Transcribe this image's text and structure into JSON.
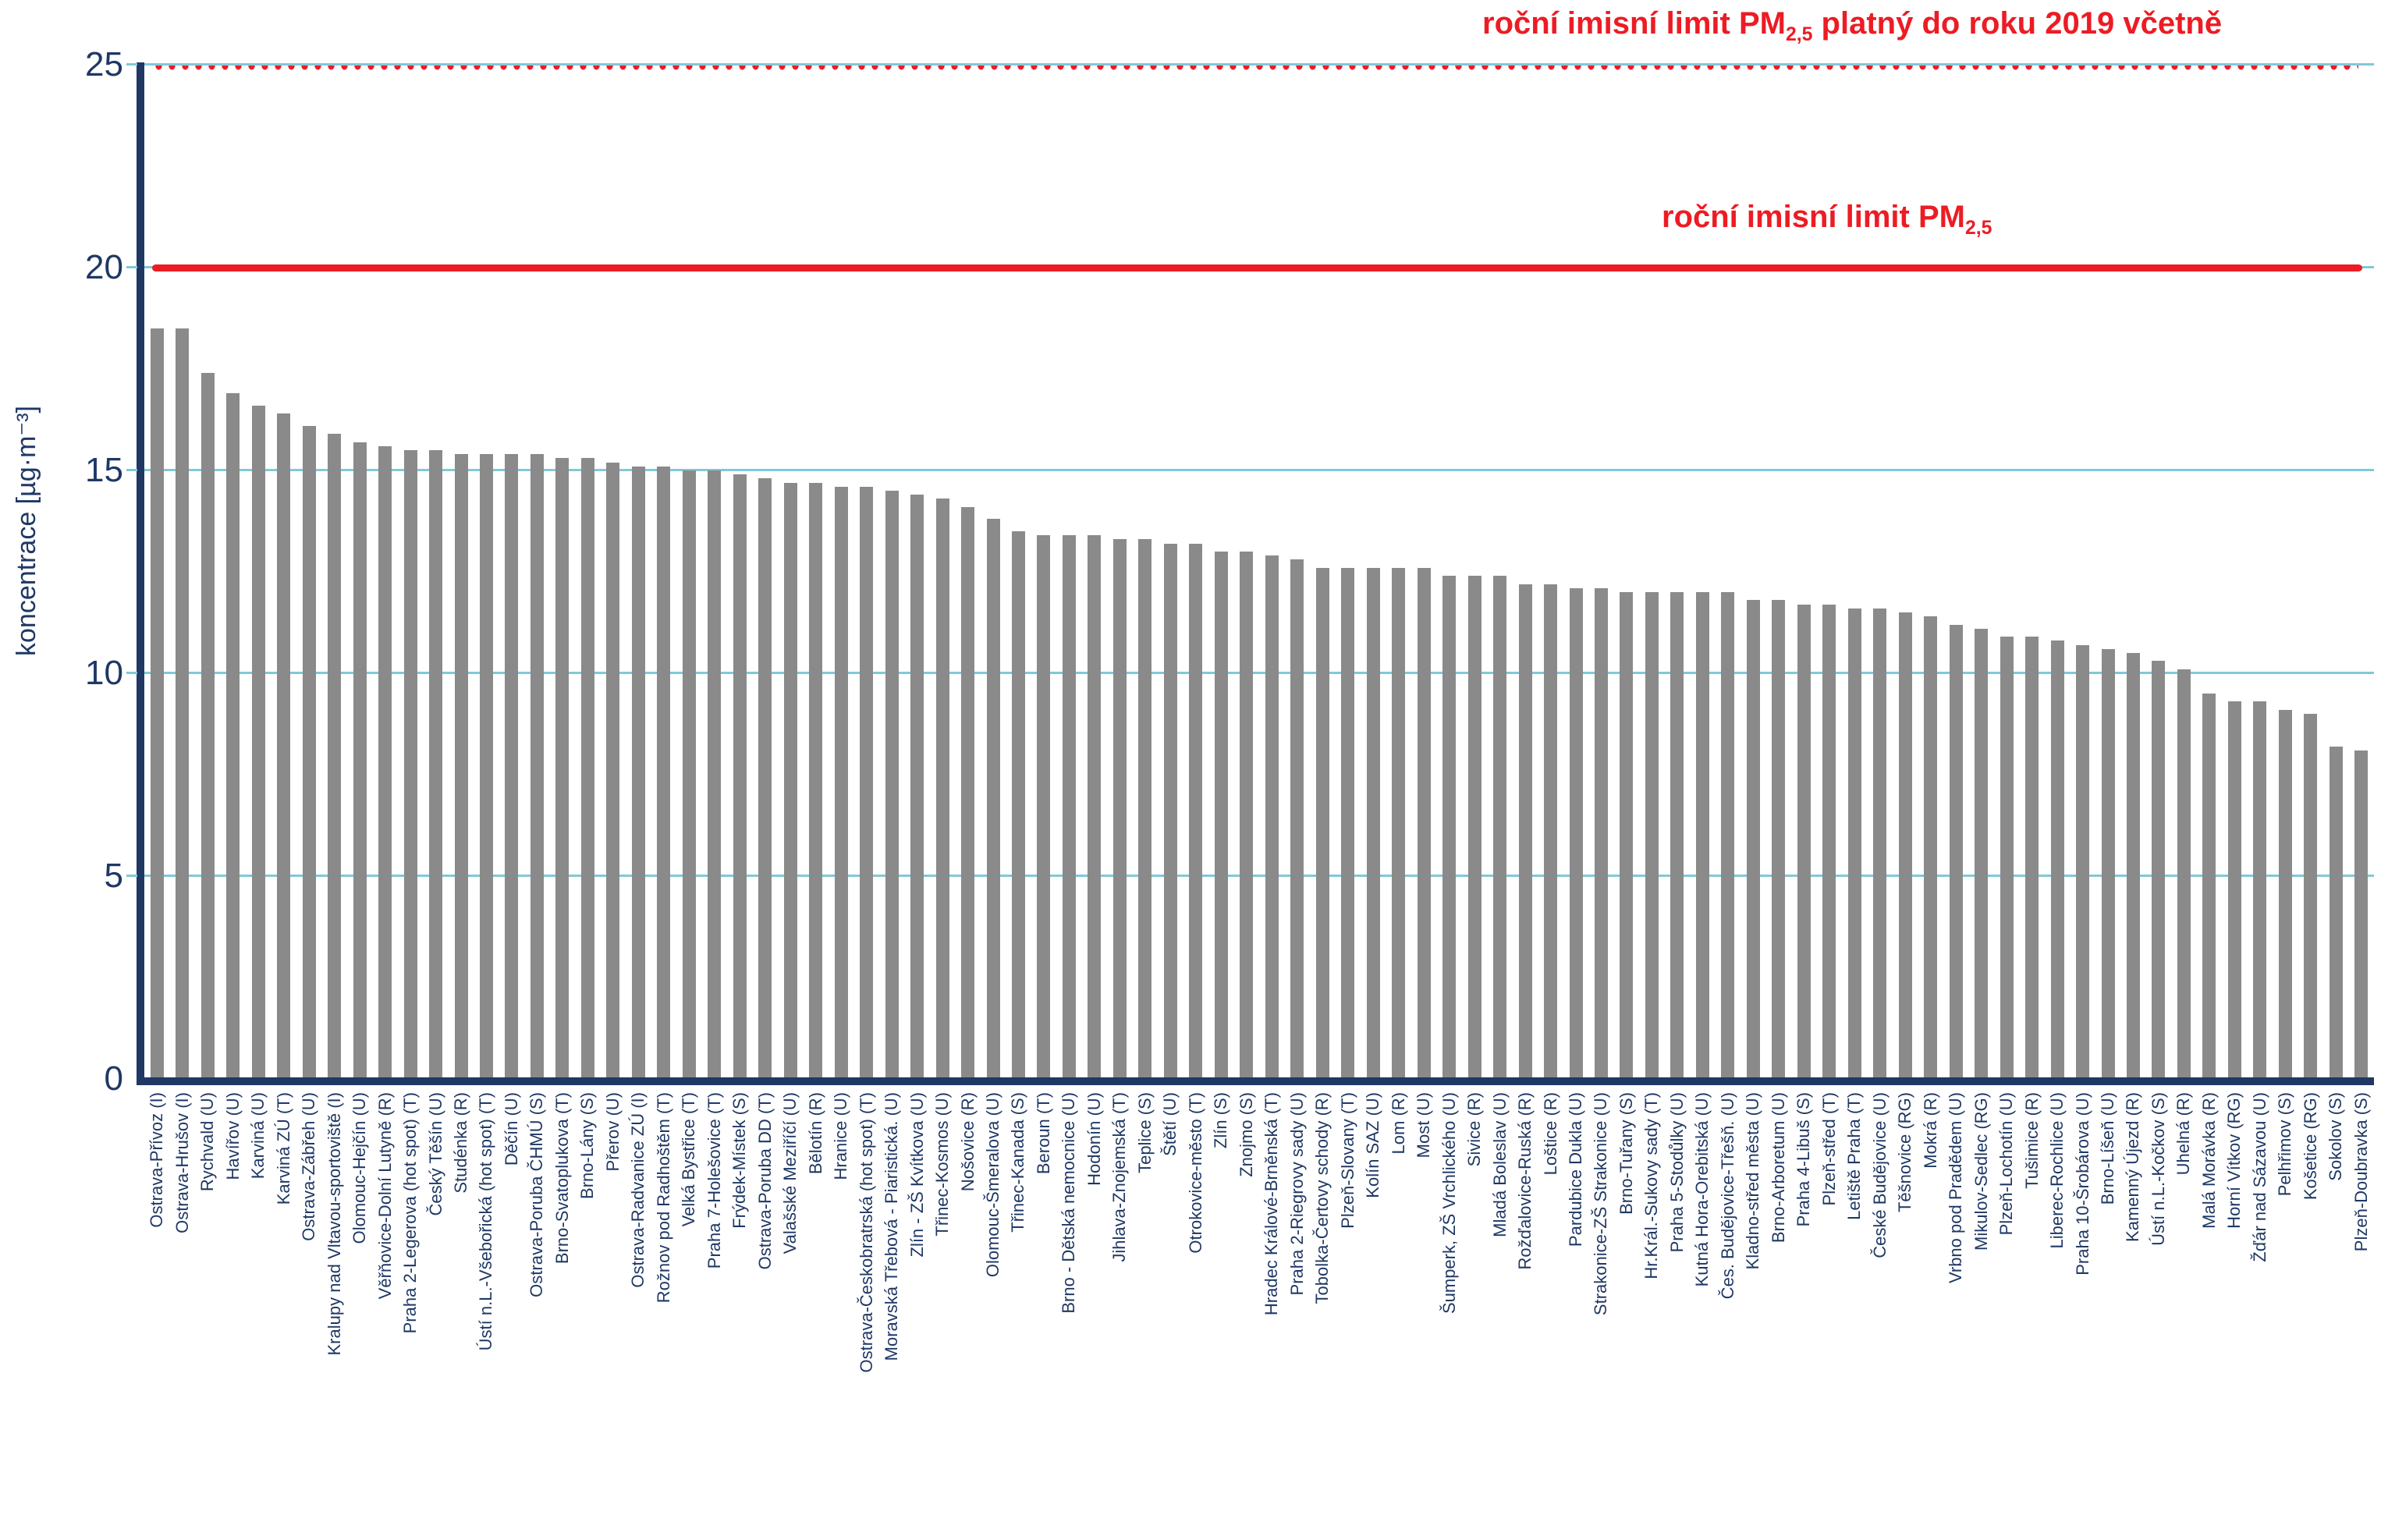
{
  "chart_data": {
    "type": "bar",
    "title": "",
    "xlabel": "",
    "ylabel": "koncentrace [µg·m⁻³]",
    "ylim": [
      0,
      25
    ],
    "yticks": [
      0,
      5,
      10,
      15,
      20,
      25
    ],
    "grid": "on",
    "bar_color": "#8A8A8A",
    "axis_color": "#1F3864",
    "grid_color": "#7EC9DA",
    "limit_color": "#EC1C24",
    "categories": [
      "Ostrava-Přívoz (I)",
      "Ostrava-Hrušov (I)",
      "Rychvald (U)",
      "Havířov (U)",
      "Karviná (U)",
      "Karviná ZÚ (T)",
      "Ostrava-Zábřeh (U)",
      "Kralupy nad Vltavou-sportoviště (I)",
      "Olomouc-Hejčín (U)",
      "Věřňovice-Dolní Lutyně (R)",
      "Praha 2-Legerova (hot spot) (T)",
      "Český Těšín (U)",
      "Studénka (R)",
      "Ústí n.L.-Všebořická (hot spot) (T)",
      "Děčín (U)",
      "Ostrava-Poruba ČHMÚ (S)",
      "Brno-Svatoplukova (T)",
      "Brno-Lány (S)",
      "Přerov (U)",
      "Ostrava-Radvanice ZÚ (I)",
      "Rožnov pod Radhoštěm (T)",
      "Velká Bystřice (T)",
      "Praha 7-Holešovice (T)",
      "Frýdek-Místek (S)",
      "Ostrava-Poruba DD (T)",
      "Valašské Meziříčí (U)",
      "Bělotín (R)",
      "Hranice (U)",
      "Ostrava-Českobratrská (hot spot) (T)",
      "Moravská Třebová - Piaristická. (U)",
      "Zlín - ZŠ Kvítkova (U)",
      "Třinec-Kosmos (U)",
      "Nošovice (R)",
      "Olomouc-Šmeralova (U)",
      "Třinec-Kanada (S)",
      "Beroun (T)",
      "Brno - Dětská nemocnice (U)",
      "Hodonín (U)",
      "Jihlava-Znojemská (T)",
      "Teplice (S)",
      "Štětí (U)",
      "Otrokovice-město (T)",
      "Zlín (S)",
      "Znojmo (S)",
      "Hradec Králové-Brněnská (T)",
      "Praha 2-Riegrovy sady (U)",
      "Tobolka-Čertovy schody (R)",
      "Plzeň-Slovany (T)",
      "Kolín SAZ (U)",
      "Lom (R)",
      "Most (U)",
      "Šumperk, ZŠ Vrchlického (U)",
      "Sivice (R)",
      "Mladá Boleslav (U)",
      "Rožďalovice-Ruská (R)",
      "Loštice (R)",
      "Pardubice Dukla (U)",
      "Strakonice-ZŠ Strakonice (U)",
      "Brno-Tuřany (S)",
      "Hr.Král.-Sukovy sady (T)",
      "Praha 5-Stodůlky (U)",
      "Kutná Hora-Orebitská (U)",
      "Čes. Budějovice-Třešň. (U)",
      "Kladno-střed města (U)",
      "Brno-Arboretum (U)",
      "Praha 4-Libuš (S)",
      "Plzeň-střed (T)",
      "Letiště Praha (T)",
      "České Budějovice (U)",
      "Těšnovice (RG)",
      "Mokrá (R)",
      "Vrbno pod Pradědem (U)",
      "Mikulov-Sedlec (RG)",
      "Plzeň-Lochotín (U)",
      "Tušimice (R)",
      "Liberec-Rochlice (U)",
      "Praha 10-Šrobárova (U)",
      "Brno-Líšeň (U)",
      "Kamenný Újezd (R)",
      "Ústí n.L.-Kočkov (S)",
      "Uhelná (R)",
      "Malá Morávka (R)",
      "Horní Vítkov (RG)",
      "Žďár nad Sázavou (U)",
      "Pelhřimov (S)",
      "Košetice (RG)",
      "Sokolov (S)",
      "Plzeň-Doubravka (S)"
    ],
    "values": [
      18.5,
      18.5,
      17.4,
      16.9,
      16.6,
      16.4,
      16.1,
      15.9,
      15.7,
      15.6,
      15.5,
      15.5,
      15.4,
      15.4,
      15.4,
      15.4,
      15.3,
      15.3,
      15.2,
      15.1,
      15.1,
      15.0,
      15.0,
      14.9,
      14.8,
      14.7,
      14.7,
      14.6,
      14.6,
      14.5,
      14.4,
      14.3,
      14.1,
      13.8,
      13.5,
      13.4,
      13.4,
      13.4,
      13.3,
      13.3,
      13.2,
      13.2,
      13.0,
      13.0,
      12.9,
      12.8,
      12.6,
      12.6,
      12.6,
      12.6,
      12.6,
      12.4,
      12.4,
      12.4,
      12.2,
      12.2,
      12.1,
      12.1,
      12.0,
      12.0,
      12.0,
      12.0,
      12.0,
      11.8,
      11.8,
      11.7,
      11.7,
      11.6,
      11.6,
      11.5,
      11.4,
      11.2,
      11.1,
      10.9,
      10.9,
      10.8,
      10.7,
      10.6,
      10.5,
      10.3,
      10.1,
      9.5,
      9.3,
      9.3,
      9.1,
      9.0,
      8.2,
      8.1
    ],
    "limits": [
      {
        "value": 25,
        "style": "dashed",
        "label_pre": "roční imisní limit PM",
        "label_sub": "2,5",
        "label_post": " platný do roku 2019 včetně"
      },
      {
        "value": 20,
        "style": "solid",
        "label_pre": "roční imisní limit PM",
        "label_sub": "2,5",
        "label_post": ""
      }
    ],
    "legend": "none"
  }
}
